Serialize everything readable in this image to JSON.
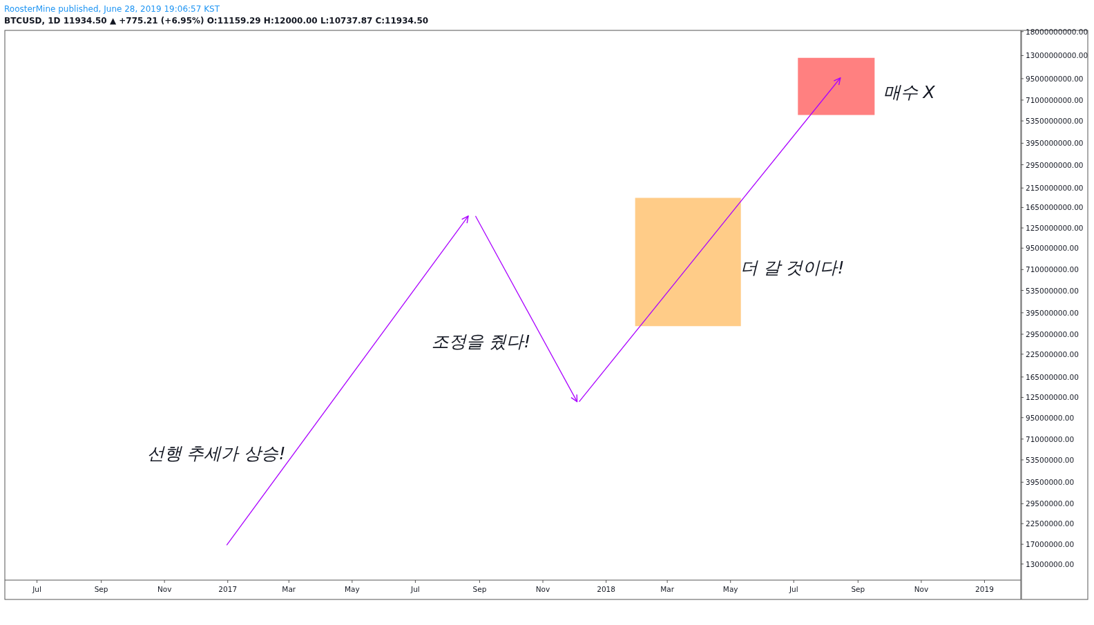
{
  "chart_data": {
    "type": "line",
    "title": "RoosterMine published, June 28, 2019 19:06:57 KST",
    "subtitle": "BTCUSD, 1D 11934.50 ▲ +775.21 (+6.95%) O:11159.29 H:12000.00 L:10737.87 C:11934.50",
    "log": "y",
    "xlim": [
      "2016-05-31",
      "2019-02-05"
    ],
    "xticks": [
      {
        "value": "2016-07-01",
        "label": "Jul"
      },
      {
        "value": "2016-09-01",
        "label": "Sep"
      },
      {
        "value": "2016-11-01",
        "label": "Nov"
      },
      {
        "value": "2017-01-01",
        "label": "2017"
      },
      {
        "value": "2017-03-01",
        "label": "Mar"
      },
      {
        "value": "2017-05-01",
        "label": "May"
      },
      {
        "value": "2017-07-01",
        "label": "Jul"
      },
      {
        "value": "2017-09-01",
        "label": "Sep"
      },
      {
        "value": "2017-11-01",
        "label": "Nov"
      },
      {
        "value": "2018-01-01",
        "label": "2018"
      },
      {
        "value": "2018-03-01",
        "label": "Mar"
      },
      {
        "value": "2018-05-01",
        "label": "May"
      },
      {
        "value": "2018-07-01",
        "label": "Jul"
      },
      {
        "value": "2018-09-01",
        "label": "Sep"
      },
      {
        "value": "2018-11-01",
        "label": "Nov"
      },
      {
        "value": "2019-01-01",
        "label": "2019"
      }
    ],
    "ylim": [
      10450000,
      18300000000
    ],
    "yticks": [
      {
        "value": 18000000000,
        "label": "18000000000.00"
      },
      {
        "value": 13000000000,
        "label": "13000000000.00"
      },
      {
        "value": 9500000000,
        "label": "9500000000.00"
      },
      {
        "value": 7100000000,
        "label": "7100000000.00"
      },
      {
        "value": 5350000000,
        "label": "5350000000.00"
      },
      {
        "value": 3950000000,
        "label": "3950000000.00"
      },
      {
        "value": 2950000000,
        "label": "2950000000.00"
      },
      {
        "value": 2150000000,
        "label": "2150000000.00"
      },
      {
        "value": 1650000000,
        "label": "1650000000.00"
      },
      {
        "value": 1250000000,
        "label": "1250000000.00"
      },
      {
        "value": 950000000,
        "label": "950000000.00"
      },
      {
        "value": 710000000,
        "label": "710000000.00"
      },
      {
        "value": 535000000,
        "label": "535000000.00"
      },
      {
        "value": 395000000,
        "label": "395000000.00"
      },
      {
        "value": 295000000,
        "label": "295000000.00"
      },
      {
        "value": 225000000,
        "label": "225000000.00"
      },
      {
        "value": 165000000,
        "label": "165000000.00"
      },
      {
        "value": 125000000,
        "label": "125000000.00"
      },
      {
        "value": 95000000,
        "label": "95000000.00"
      },
      {
        "value": 71000000,
        "label": "71000000.00"
      },
      {
        "value": 53500000,
        "label": "53500000.00"
      },
      {
        "value": 39500000,
        "label": "39500000.00"
      },
      {
        "value": 29500000,
        "label": "29500000.00"
      },
      {
        "value": 22500000,
        "label": "22500000.00"
      },
      {
        "value": 17000000,
        "label": "17000000.00"
      },
      {
        "value": 13000000,
        "label": "13000000.00"
      }
    ],
    "series": [
      {
        "type": "area",
        "color": "#ffcc88",
        "x": [
          "2018-01-29",
          "2018-05-11"
        ],
        "lower": [
          329000000,
          329000000
        ],
        "upper": [
          1880000000,
          1880000000
        ],
        "values": [
          null,
          null
        ]
      },
      {
        "type": "area",
        "color": "#ff8080",
        "x": [
          "2018-07-05",
          "2018-09-17"
        ],
        "lower": [
          5800000000,
          5800000000
        ],
        "upper": [
          12600000000,
          12600000000
        ],
        "values": [
          null,
          null
        ]
      },
      {
        "color": "#aa00ff",
        "x": [
          "2016-12-31",
          "2017-08-21"
        ],
        "values": [
          16800000,
          1470000000
        ]
      },
      {
        "color": "#aa00ff",
        "x": [
          "2017-08-28",
          "2017-12-04"
        ],
        "values": [
          1470000000,
          118000000
        ]
      },
      {
        "color": "#aa00ff",
        "x": [
          "2017-12-06",
          "2018-08-15"
        ],
        "values": [
          118000000,
          9600000000
        ]
      }
    ],
    "annotations": [
      "선행 추세가 상승!",
      "조정을 줬다!",
      "더 갈 것이다!",
      "매수 X"
    ],
    "grid": false
  }
}
